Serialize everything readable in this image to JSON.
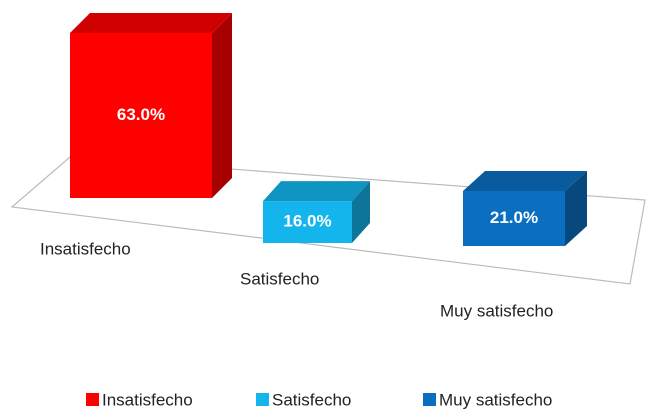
{
  "chart_data": {
    "type": "bar3d",
    "categories": [
      "Insatisfecho",
      "Satisfecho",
      "Muy satisfecho"
    ],
    "values": [
      63,
      16,
      21
    ],
    "value_labels": [
      "63.0%",
      "16.0%",
      "21.0%"
    ],
    "colors": [
      "#ff0000",
      "#14b4ec",
      "#0b6fc1"
    ],
    "legend": "bottom"
  }
}
